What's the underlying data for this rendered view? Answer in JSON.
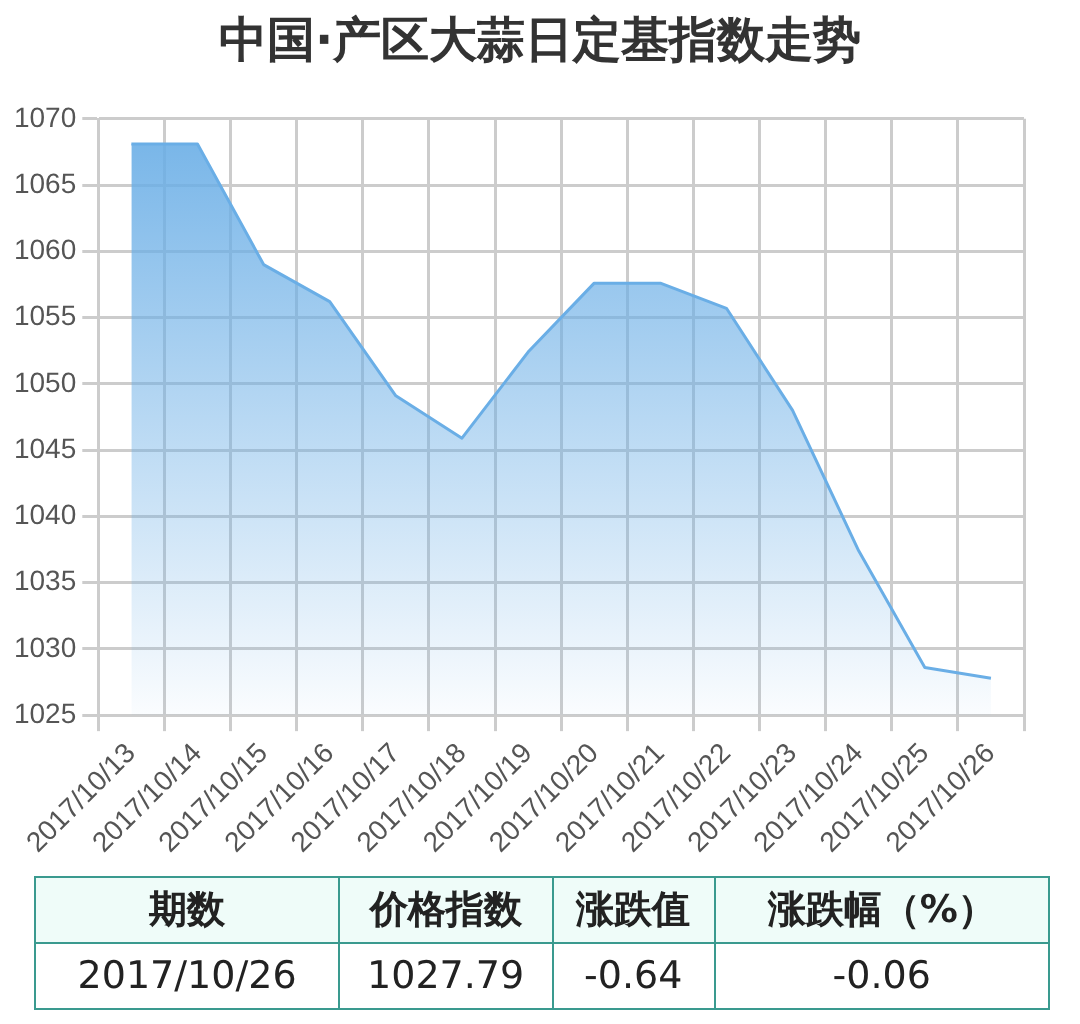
{
  "chart_data": {
    "type": "area",
    "title": "中国·产区大蒜日定基指数走势",
    "categories": [
      "2017/10/13",
      "2017/10/14",
      "2017/10/15",
      "2017/10/16",
      "2017/10/17",
      "2017/10/18",
      "2017/10/19",
      "2017/10/20",
      "2017/10/21",
      "2017/10/22",
      "2017/10/23",
      "2017/10/24",
      "2017/10/25",
      "2017/10/26"
    ],
    "series": [
      {
        "color": "#6aaee6",
        "values": [
          1068.1,
          1068.1,
          1059.0,
          1056.2,
          1049.1,
          1045.9,
          1052.4,
          1057.6,
          1057.6,
          1055.7,
          1048.0,
          1037.4,
          1028.6,
          1027.79
        ]
      }
    ],
    "ylim": [
      1025,
      1070
    ],
    "yticks": [
      1025,
      1030,
      1035,
      1040,
      1045,
      1050,
      1055,
      1060,
      1065,
      1070
    ],
    "grid": true,
    "legend": false,
    "marker": "none",
    "line_style": "solid",
    "annotations": [
      "期数",
      "价格指数",
      "涨跌值",
      "涨跌幅（%）",
      "2017/10/26",
      "1027.79",
      "-0.64",
      "-0.06"
    ]
  }
}
